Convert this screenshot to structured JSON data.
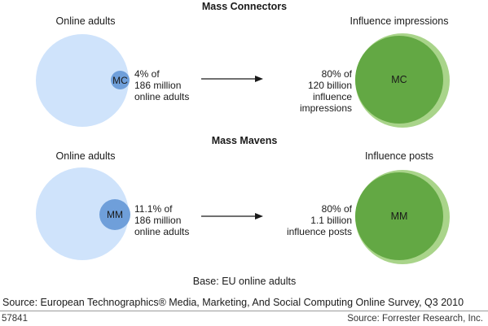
{
  "sections": [
    {
      "title": "Mass Connectors",
      "left_label": "Online adults",
      "right_label": "Influence impressions",
      "left_badge": "MC",
      "right_badge": "MC",
      "left_stat": [
        "4% of",
        "186 million",
        "online adults"
      ],
      "right_stat": [
        "80% of",
        "120 billion",
        "influence",
        "impressions"
      ]
    },
    {
      "title": "Mass Mavens",
      "left_label": "Online adults",
      "right_label": "Influence posts",
      "left_badge": "MM",
      "right_badge": "MM",
      "left_stat": [
        "11.1% of",
        "186 million",
        "online adults"
      ],
      "right_stat": [
        "80% of",
        "1.1 billion",
        "influence posts"
      ]
    }
  ],
  "base_note": "Base: EU online adults",
  "source_line": "Source: European Technographics® Media, Marketing, And Social Computing Online Survey, Q3 2010",
  "figure_id": "57841",
  "credit": "Source: Forrester Research, Inc.",
  "colors": {
    "population_circle": "#cfe3fb",
    "segment_circle": "#6f9fda",
    "influence_outer": "#a9d48a",
    "influence_inner": "#63a844"
  }
}
